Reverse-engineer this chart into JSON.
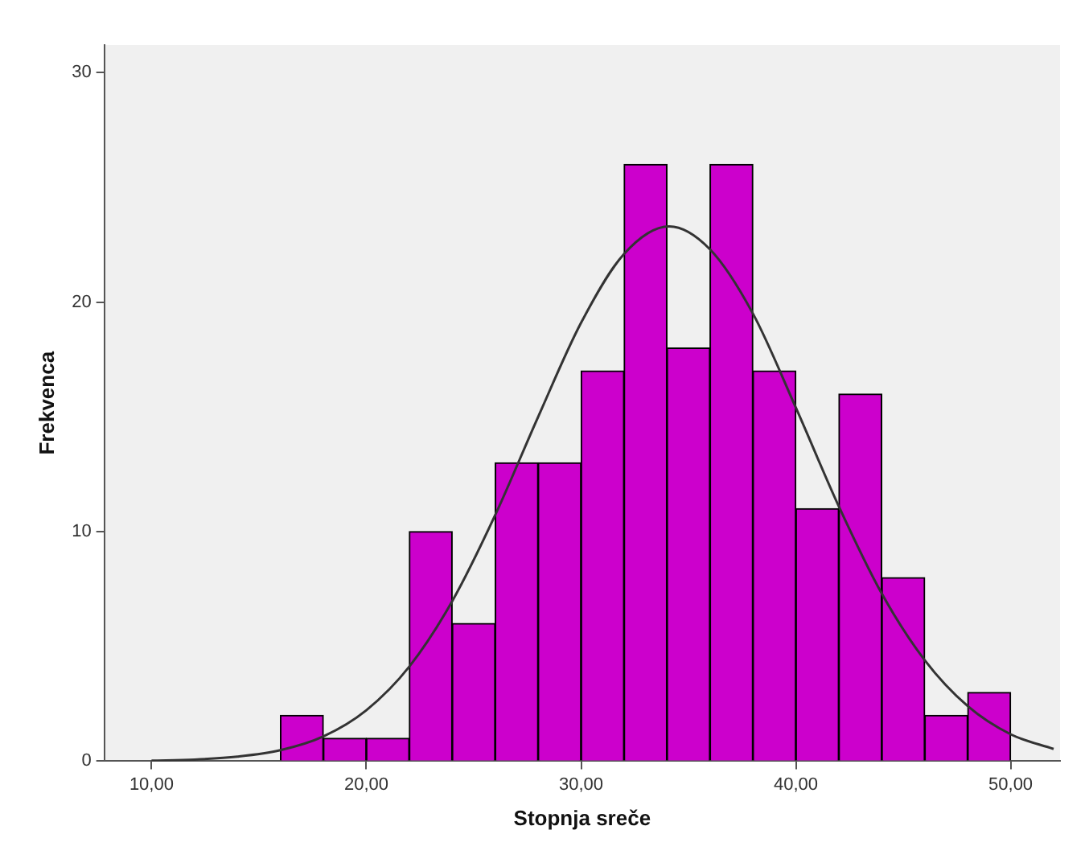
{
  "chart_data": {
    "type": "histogram",
    "xlabel": "Stopnja sreče",
    "ylabel": "Frekvenca",
    "bins": [
      16,
      18,
      20,
      22,
      24,
      26,
      28,
      30,
      32,
      34,
      36,
      38,
      40,
      42,
      44,
      46,
      48,
      50
    ],
    "values": [
      2,
      1,
      1,
      10,
      6,
      13,
      13,
      17,
      26,
      18,
      26,
      17,
      11,
      16,
      8,
      2,
      3
    ],
    "color": "#cc00cc",
    "series": [
      {
        "type": "line",
        "color": "#333333",
        "x": [
          10,
          12,
          14,
          16,
          18,
          20,
          22,
          24,
          26,
          28,
          30,
          32,
          34.1,
          36,
          38,
          40,
          42,
          44,
          46,
          48,
          50,
          52
        ],
        "values": [
          0.02,
          0.07,
          0.2,
          0.48,
          1.08,
          2.22,
          4.12,
          6.97,
          10.72,
          15.0,
          19.1,
          22.1,
          23.3,
          22.3,
          19.5,
          15.4,
          11.1,
          7.3,
          4.4,
          2.4,
          1.17,
          0.53
        ]
      }
    ],
    "xlim": [
      7.8,
      52.3
    ],
    "xticks": [
      {
        "value": 10,
        "label": "10,00"
      },
      {
        "value": 20,
        "label": "20,00"
      },
      {
        "value": 30,
        "label": "30,00"
      },
      {
        "value": 40,
        "label": "40,00"
      },
      {
        "value": 50,
        "label": "50,00"
      }
    ],
    "ylim": [
      0,
      31.2
    ],
    "yticks": [
      0,
      10,
      20,
      30
    ],
    "grid": false,
    "legend": false
  }
}
